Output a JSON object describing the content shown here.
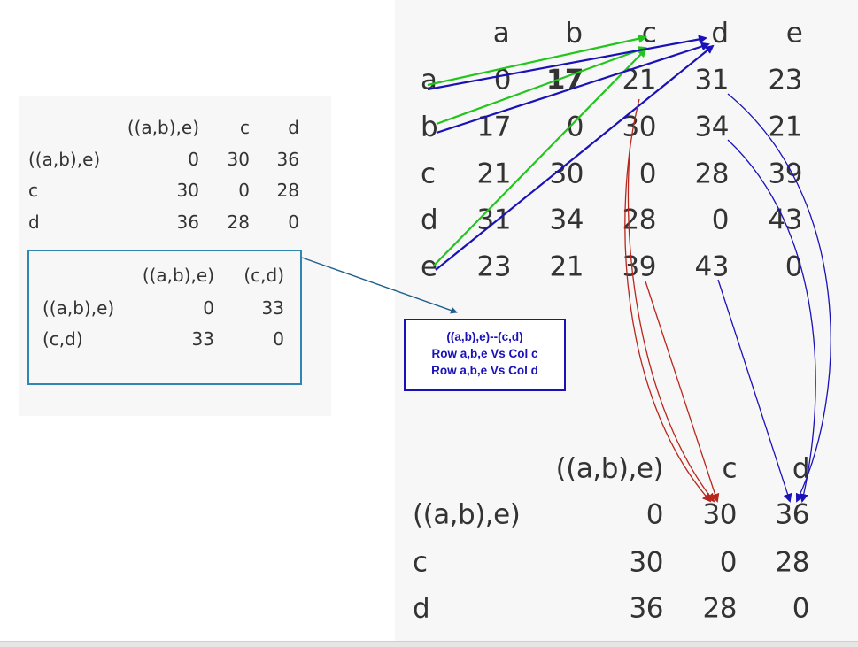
{
  "left_matrix": {
    "col_headers": [
      "((a,b),e)",
      "c",
      "d"
    ],
    "rows": [
      {
        "label": "((a,b),e)",
        "values": [
          "0",
          "30",
          "36"
        ]
      },
      {
        "label": "c",
        "values": [
          "30",
          "0",
          "28"
        ]
      },
      {
        "label": "d",
        "values": [
          "36",
          "28",
          "0"
        ]
      }
    ]
  },
  "merged_matrix": {
    "col_headers": [
      "((a,b),e)",
      "(c,d)"
    ],
    "rows": [
      {
        "label": "((a,b),e)",
        "values": [
          "0",
          "33"
        ]
      },
      {
        "label": "(c,d)",
        "values": [
          "33",
          "0"
        ]
      }
    ]
  },
  "note": {
    "line1": "((a,b),e)--(c,d)",
    "line2": "Row a,b,e Vs Col c",
    "line3": "Row a,b,e Vs Col d"
  },
  "distance_matrix": {
    "col_headers": [
      "a",
      "b",
      "c",
      "d",
      "e"
    ],
    "rows": [
      {
        "label": "a",
        "values": [
          "0",
          "17",
          "21",
          "31",
          "23"
        ]
      },
      {
        "label": "b",
        "values": [
          "17",
          "0",
          "30",
          "34",
          "21"
        ]
      },
      {
        "label": "c",
        "values": [
          "21",
          "30",
          "0",
          "28",
          "39"
        ]
      },
      {
        "label": "d",
        "values": [
          "31",
          "34",
          "28",
          "0",
          "43"
        ]
      },
      {
        "label": "e",
        "values": [
          "23",
          "21",
          "39",
          "43",
          "0"
        ]
      }
    ]
  },
  "result_matrix": {
    "col_headers": [
      "((a,b),e)",
      "c",
      "d"
    ],
    "rows": [
      {
        "label": "((a,b),e)",
        "values": [
          "0",
          "30",
          "36"
        ]
      },
      {
        "label": "c",
        "values": [
          "30",
          "0",
          "28"
        ]
      },
      {
        "label": "d",
        "values": [
          "36",
          "28",
          "0"
        ]
      }
    ]
  },
  "colors": {
    "green_arrow": "#22c51c",
    "blue_arrow": "#1a12b8",
    "red_arrow": "#b8261c",
    "connector": "#1f5f8a"
  }
}
